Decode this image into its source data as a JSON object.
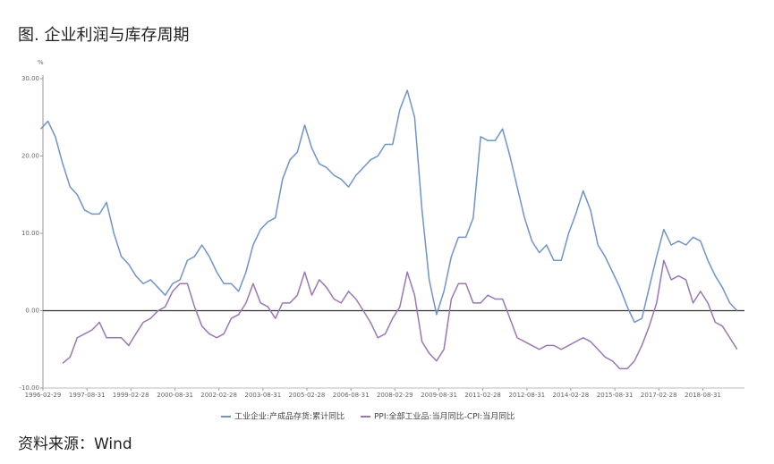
{
  "title": "图. 企业利润与库存周期",
  "source": "资料来源：Wind",
  "chart_data": {
    "type": "line",
    "y_unit": "%",
    "x": [
      "1996-02",
      "1996-05",
      "1996-08",
      "1996-11",
      "1997-02",
      "1997-05",
      "1997-08",
      "1997-11",
      "1998-02",
      "1998-05",
      "1998-08",
      "1998-11",
      "1999-02",
      "1999-05",
      "1999-08",
      "1999-11",
      "2000-02",
      "2000-05",
      "2000-08",
      "2000-11",
      "2001-02",
      "2001-05",
      "2001-08",
      "2001-11",
      "2002-02",
      "2002-05",
      "2002-08",
      "2002-11",
      "2003-02",
      "2003-05",
      "2003-08",
      "2003-11",
      "2004-02",
      "2004-05",
      "2004-08",
      "2004-11",
      "2005-02",
      "2005-05",
      "2005-08",
      "2005-11",
      "2006-02",
      "2006-05",
      "2006-08",
      "2006-11",
      "2007-02",
      "2007-05",
      "2007-08",
      "2007-11",
      "2008-02",
      "2008-05",
      "2008-08",
      "2008-11",
      "2009-02",
      "2009-05",
      "2009-08",
      "2009-11",
      "2010-02",
      "2010-05",
      "2010-08",
      "2010-11",
      "2011-02",
      "2011-05",
      "2011-08",
      "2011-11",
      "2012-02",
      "2012-05",
      "2012-08",
      "2012-11",
      "2013-02",
      "2013-05",
      "2013-08",
      "2013-11",
      "2014-02",
      "2014-05",
      "2014-08",
      "2014-11",
      "2015-02",
      "2015-05",
      "2015-08",
      "2015-11",
      "2016-02",
      "2016-05",
      "2016-08",
      "2016-11",
      "2017-02",
      "2017-05",
      "2017-08",
      "2017-11",
      "2018-02",
      "2018-05",
      "2018-08",
      "2018-11",
      "2019-02",
      "2019-05",
      "2019-08",
      "2019-11"
    ],
    "series": [
      {
        "name": "工业企业:产成品存货:累计同比",
        "color": "#7094c8",
        "values": [
          23.5,
          24.5,
          22.5,
          19,
          16,
          15,
          13,
          12.5,
          12.5,
          14,
          10,
          7,
          6,
          4.5,
          3.5,
          4,
          3,
          2,
          3.5,
          4,
          6.5,
          7,
          8.5,
          7,
          5,
          3.5,
          3.5,
          2.5,
          5,
          8.5,
          10.5,
          11.5,
          12,
          17,
          19.5,
          20.5,
          24,
          21,
          19,
          18.5,
          17.5,
          17,
          16,
          17.5,
          18.5,
          19.5,
          20,
          21.5,
          21.5,
          26,
          28.5,
          25,
          13,
          4,
          -0.5,
          2.5,
          7,
          9.5,
          9.5,
          12,
          22.5,
          22,
          22,
          23.5,
          20,
          16,
          12,
          9,
          7.5,
          8.5,
          6.5,
          6.5,
          10,
          12.5,
          15.5,
          13,
          8.5,
          7,
          5,
          3,
          0.5,
          -1.5,
          -1,
          3,
          7,
          10.5,
          8.5,
          9,
          8.5,
          9.5,
          9,
          6.5,
          4.5,
          3,
          1,
          0
        ]
      },
      {
        "name": "PPI:全部工业品:当月同比-CPI:当月同比",
        "color": "#9a77b3",
        "values": [
          null,
          null,
          null,
          -6.8,
          -6,
          -3.5,
          -3,
          -2.5,
          -1.5,
          -3.5,
          -3.5,
          -3.5,
          -4.5,
          -3,
          -1.5,
          -1,
          0,
          0.5,
          2.5,
          3.5,
          3.5,
          0.5,
          -2,
          -3,
          -3.5,
          -3,
          -1,
          -0.5,
          1,
          3.5,
          1,
          0.5,
          -1,
          1,
          1,
          2,
          5,
          2,
          4,
          3,
          1.5,
          1,
          2.5,
          1.5,
          0,
          -1.5,
          -3.5,
          -3,
          -1,
          0.5,
          5,
          2,
          -4,
          -5.5,
          -6.5,
          -5,
          1.5,
          3.5,
          3.5,
          1,
          1,
          2,
          1.5,
          1.5,
          -1,
          -3.5,
          -4,
          -4.5,
          -5,
          -4.5,
          -4.5,
          -5,
          -4.5,
          -4,
          -3.5,
          -4,
          -5,
          -6,
          -6.5,
          -7.5,
          -7.5,
          -6.5,
          -4.5,
          -2,
          1,
          6.5,
          4,
          4.5,
          4,
          1,
          2.5,
          1,
          -1.5,
          -2,
          -3.5,
          -5
        ]
      }
    ],
    "xlim": [
      "1996-02-29",
      "2020-01-31"
    ],
    "xticks": [
      "1996-02-29",
      "1997-08-31",
      "1999-02-28",
      "2000-08-31",
      "2002-02-28",
      "2003-08-31",
      "2005-02-28",
      "2006-08-31",
      "2008-02-29",
      "2009-08-31",
      "2011-02-28",
      "2012-08-31",
      "2014-02-28",
      "2015-08-31",
      "2017-02-28",
      "2018-08-31"
    ],
    "ylim": [
      -10,
      30
    ],
    "yticks": [
      {
        "value": 30,
        "label": "30.00"
      },
      {
        "value": 20,
        "label": "20.00"
      },
      {
        "value": 10,
        "label": "10.00"
      },
      {
        "value": 0,
        "label": "0.00"
      },
      {
        "value": -10,
        "label": "-10.00"
      }
    ],
    "grid": false,
    "legend": "bottom"
  }
}
